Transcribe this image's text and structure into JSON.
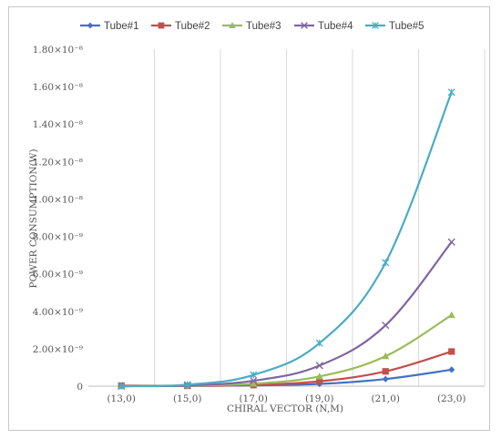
{
  "chart_data": {
    "type": "line",
    "title": "",
    "xlabel": "CHIRAL VECTOR (N,M)",
    "ylabel": "POWER CONSUMPTION(W)",
    "categories": [
      "(13,0)",
      "(15,0)",
      "(17,0)",
      "(19,0)",
      "(21,0)",
      "(23,0)"
    ],
    "ylim": [
      0,
      1.8e-08
    ],
    "ytick_values": [
      0,
      2e-09,
      4e-09,
      6e-09,
      8e-09,
      1e-08,
      1.2e-08,
      1.4e-08,
      1.6e-08,
      1.8e-08
    ],
    "ytick_labels": [
      "0",
      "2.00×10⁻⁹",
      "4.00×10⁻⁹",
      "6.00×10⁻⁹",
      "8.00×10⁻⁹",
      "1.00×10⁻⁸",
      "1.20×10⁻⁸",
      "1.40×10⁻⁸",
      "1.60×10⁻⁸",
      "1.80×10⁻⁸"
    ],
    "grid": "vertical",
    "legend_position": "top",
    "series": [
      {
        "name": "Tube#1",
        "color": "#4472c4",
        "marker": "diamond",
        "values": [
          0,
          1e-11,
          4e-11,
          1.2e-10,
          3.8e-10,
          8.8e-10
        ]
      },
      {
        "name": "Tube#2",
        "color": "#c0504d",
        "marker": "square",
        "values": [
          3e-11,
          2e-11,
          6e-11,
          2.6e-10,
          7.9e-10,
          1.85e-09
        ]
      },
      {
        "name": "Tube#3",
        "color": "#9bbb59",
        "marker": "triangle",
        "values": [
          0,
          3e-11,
          1.3e-10,
          5.2e-10,
          1.6e-09,
          3.8e-09
        ]
      },
      {
        "name": "Tube#4",
        "color": "#8064a2",
        "marker": "x",
        "values": [
          0,
          4e-11,
          2.9e-10,
          1.1e-09,
          3.25e-09,
          7.7e-09
        ]
      },
      {
        "name": "Tube#5",
        "color": "#4bacc6",
        "marker": "star",
        "values": [
          0,
          8e-11,
          6e-10,
          2.3e-09,
          6.6e-09,
          1.57e-08
        ]
      }
    ]
  }
}
